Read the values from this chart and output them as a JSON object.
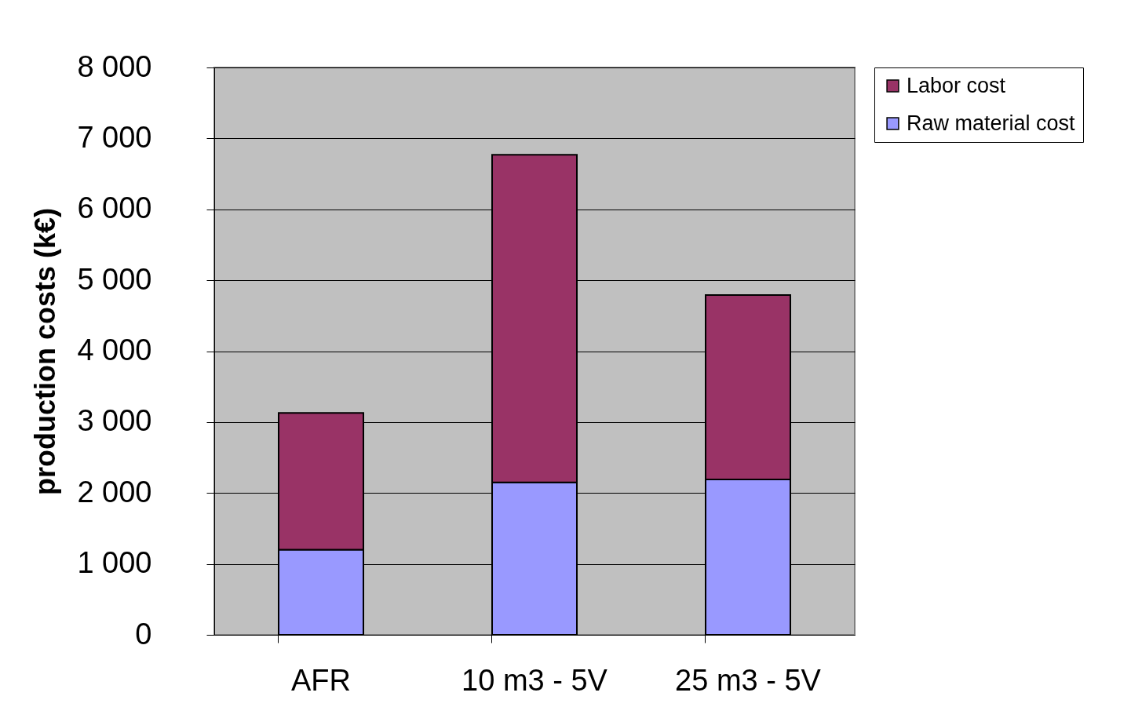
{
  "chart_data": {
    "type": "bar",
    "ylabel": "production costs (k€)",
    "categories": [
      "AFR",
      "10 m3 - 5V",
      "25 m3 - 5V"
    ],
    "stacked": true,
    "series": [
      {
        "name": "Raw material cost",
        "color": "#9999ff",
        "values": [
          1200,
          2150,
          2190
        ]
      },
      {
        "name": "Labor cost",
        "color": "#993366",
        "values": [
          1930,
          4620,
          2600
        ]
      }
    ],
    "ylim": [
      0,
      8000
    ],
    "yticks": [
      {
        "value": 0,
        "label": "0"
      },
      {
        "value": 1000,
        "label": "1 000"
      },
      {
        "value": 2000,
        "label": "2 000"
      },
      {
        "value": 3000,
        "label": "3 000"
      },
      {
        "value": 4000,
        "label": "4 000"
      },
      {
        "value": 5000,
        "label": "5 000"
      },
      {
        "value": 6000,
        "label": "6 000"
      },
      {
        "value": 7000,
        "label": "7 000"
      },
      {
        "value": 8000,
        "label": "8 000"
      }
    ],
    "grid": "y",
    "legend": "right"
  }
}
